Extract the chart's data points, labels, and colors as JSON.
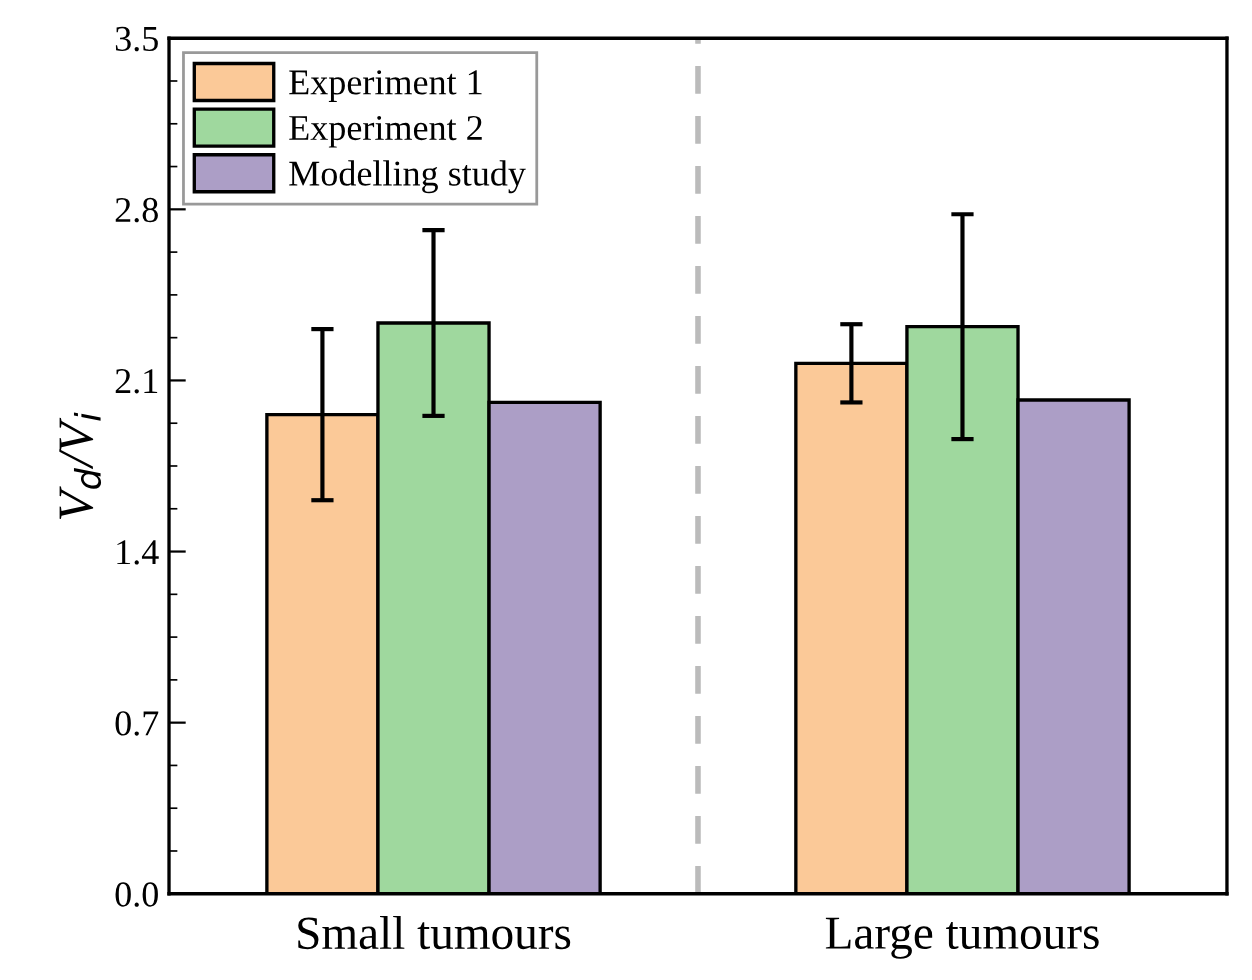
{
  "chart_data": {
    "type": "bar",
    "ylabel": "V$_{d}$/V$_{i}$",
    "categories": [
      "Small tumours",
      "Large tumours"
    ],
    "series": [
      {
        "name": "Experiment 1",
        "color": "#fbc998",
        "values": [
          1.96,
          2.17
        ],
        "errors": [
          0.35,
          0.16
        ]
      },
      {
        "name": "Experiment 2",
        "color": "#9fd89e",
        "values": [
          2.335,
          2.32
        ],
        "errors": [
          0.38,
          0.46
        ]
      },
      {
        "name": "Modelling study",
        "color": "#ac9ec6",
        "values": [
          2.01,
          2.02
        ]
      }
    ],
    "ylim": [
      0,
      3.5
    ],
    "yticks": [
      {
        "value": 0,
        "label": "0.0"
      },
      0.7,
      1.4,
      2.1,
      2.8,
      3.5
    ],
    "legend": "top left",
    "grid": false
  }
}
